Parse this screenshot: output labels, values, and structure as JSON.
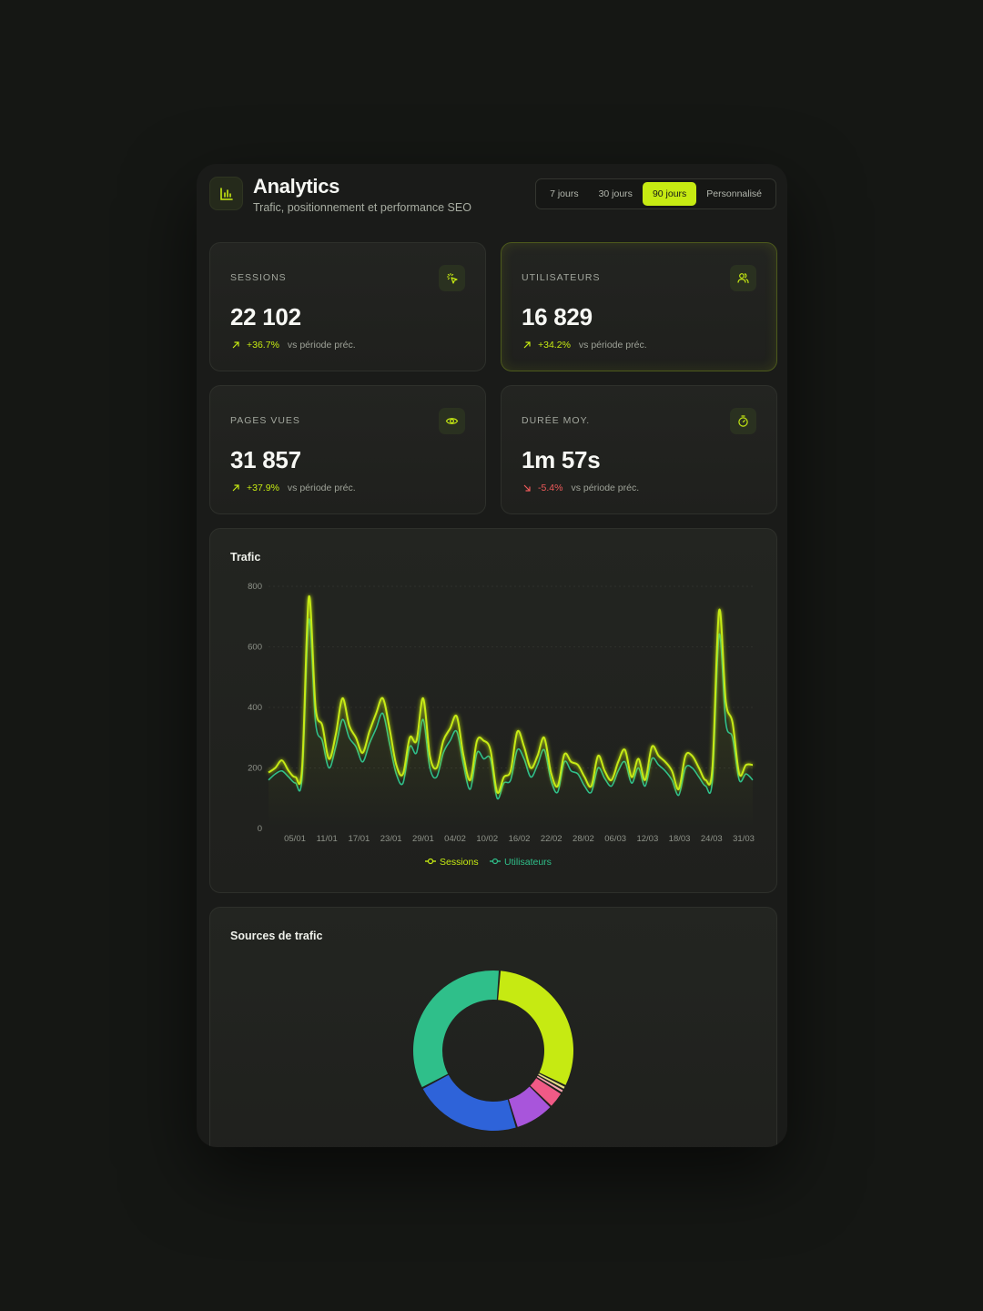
{
  "header": {
    "title": "Analytics",
    "subtitle": "Trafic, positionnement et performance SEO",
    "icon": "bar-chart-icon"
  },
  "range": {
    "options": [
      "7 jours",
      "30 jours",
      "90 jours",
      "Personnalisé"
    ],
    "selected": "90 jours"
  },
  "kpis": [
    {
      "label": "SESSIONS",
      "value": "22 102",
      "delta": "+36.7%",
      "trend": "up",
      "note": "vs période préc.",
      "icon": "cursor-click-icon"
    },
    {
      "label": "UTILISATEURS",
      "value": "16 829",
      "delta": "+34.2%",
      "trend": "up",
      "note": "vs période préc.",
      "icon": "users-icon"
    },
    {
      "label": "PAGES VUES",
      "value": "31 857",
      "delta": "+37.9%",
      "trend": "up",
      "note": "vs période préc.",
      "icon": "eye-icon"
    },
    {
      "label": "DURÉE MOY.",
      "value": "1m 57s",
      "delta": "-5.4%",
      "trend": "down",
      "note": "vs période préc.",
      "icon": "stopwatch-icon"
    }
  ],
  "colors": {
    "accent": "#c6ea12",
    "secondary": "#2fbf8a",
    "negative": "#ef5a5a"
  },
  "traffic": {
    "title": "Trafic",
    "legend": [
      "Sessions",
      "Utilisateurs"
    ]
  },
  "sources": {
    "title": "Sources de trafic"
  },
  "chart_data": [
    {
      "type": "line",
      "title": "Trafic",
      "ylim": [
        0,
        800
      ],
      "yticks": [
        0,
        200,
        400,
        600,
        800
      ],
      "xtick_labels": [
        "05/01",
        "11/01",
        "17/01",
        "23/01",
        "29/01",
        "04/02",
        "10/02",
        "16/02",
        "22/02",
        "28/02",
        "06/03",
        "12/03",
        "18/03",
        "24/03",
        "31/03"
      ],
      "x_start": "01/01",
      "x_end": "01/04",
      "grid": true,
      "legend_position": "bottom",
      "series": [
        {
          "name": "Sessions",
          "color": "#c6ea12",
          "values": [
            185,
            200,
            225,
            190,
            170,
            200,
            765,
            400,
            340,
            230,
            310,
            430,
            340,
            300,
            250,
            320,
            380,
            430,
            330,
            210,
            180,
            300,
            290,
            430,
            240,
            200,
            290,
            330,
            370,
            240,
            160,
            290,
            290,
            260,
            120,
            170,
            190,
            320,
            270,
            200,
            240,
            300,
            185,
            140,
            245,
            220,
            210,
            170,
            140,
            240,
            190,
            160,
            220,
            260,
            170,
            230,
            160,
            270,
            240,
            220,
            190,
            130,
            240,
            240,
            200,
            160,
            200,
            720,
            420,
            350,
            180,
            210,
            210
          ]
        },
        {
          "name": "Utilisateurs",
          "color": "#2fbf8a",
          "values": [
            160,
            180,
            190,
            170,
            150,
            170,
            690,
            350,
            290,
            200,
            270,
            360,
            300,
            270,
            220,
            280,
            330,
            380,
            280,
            180,
            150,
            270,
            250,
            360,
            200,
            170,
            250,
            290,
            320,
            210,
            130,
            250,
            230,
            230,
            100,
            150,
            160,
            260,
            230,
            170,
            210,
            260,
            160,
            120,
            220,
            190,
            180,
            140,
            120,
            200,
            165,
            140,
            190,
            220,
            150,
            200,
            140,
            230,
            210,
            190,
            160,
            110,
            200,
            200,
            170,
            140,
            160,
            640,
            350,
            300,
            160,
            180,
            160
          ]
        }
      ]
    },
    {
      "type": "pie",
      "title": "Sources de trafic",
      "slices": [
        {
          "color": "#c6ea12",
          "value": 31
        },
        {
          "color": "#e6de86",
          "value": 0.8
        },
        {
          "color": "#f7a7b0",
          "value": 0.8
        },
        {
          "color": "#f05a86",
          "value": 3.4
        },
        {
          "color": "#a855db",
          "value": 8
        },
        {
          "color": "#2e63d9",
          "value": 22
        },
        {
          "color": "#2fbf8a",
          "value": 34
        }
      ]
    }
  ]
}
